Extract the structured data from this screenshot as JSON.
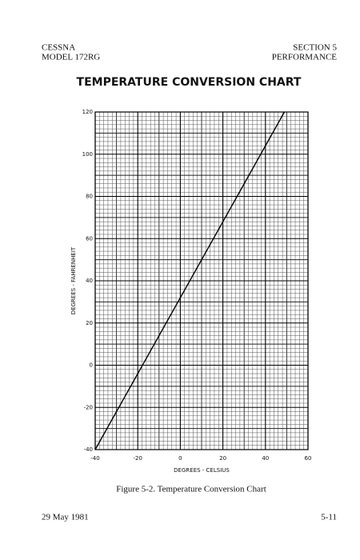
{
  "header": {
    "left": [
      "CESSNA",
      "MODEL 172RG"
    ],
    "right": [
      "SECTION 5",
      "PERFORMANCE"
    ]
  },
  "title": "TEMPERATURE CONVERSION CHART",
  "chart_data": {
    "type": "line",
    "x_label": "DEGREES - CELSIUS",
    "y_label": "DEGREES - FAHRENHEIT",
    "x": [
      -40,
      48.9
    ],
    "values": [
      -40,
      120
    ],
    "color": "#000000",
    "xlim": [
      -40,
      60
    ],
    "xticks": [
      -40,
      -20,
      0,
      20,
      40,
      60
    ],
    "ylim": [
      -40,
      120
    ],
    "yticks": [
      -40,
      -20,
      0,
      20,
      40,
      60,
      80,
      100,
      120
    ],
    "grid": true
  },
  "caption": "Figure 5-2.  Temperature Conversion Chart",
  "footer": {
    "date": "29 May 1981",
    "page": "5-11"
  }
}
